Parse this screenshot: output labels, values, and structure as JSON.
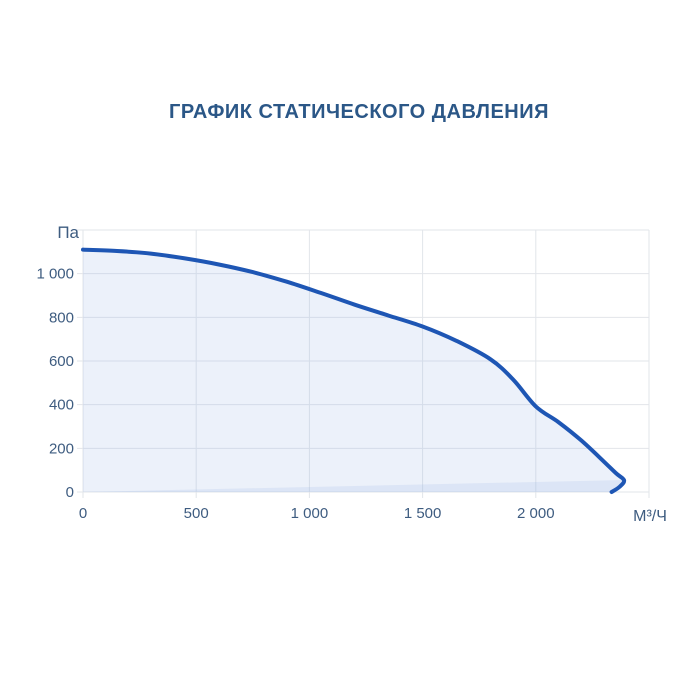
{
  "title": "ГРАФИК СТАТИЧЕСКОГО ДАВЛЕНИЯ",
  "chart_data": {
    "type": "area",
    "title": "ГРАФИК СТАТИЧЕСКОГО ДАВЛЕНИЯ",
    "xlabel": "М³/Ч",
    "ylabel": "Па",
    "xlim": [
      0,
      2500
    ],
    "ylim": [
      0,
      1200
    ],
    "grid": true,
    "legend": false,
    "x_ticks": {
      "values": [
        0,
        500,
        1000,
        1500,
        2000
      ],
      "labels": [
        "0",
        "500",
        "1 000",
        "1 500",
        "2 000"
      ]
    },
    "y_ticks": {
      "values": [
        0,
        200,
        400,
        600,
        800,
        1000
      ],
      "labels": [
        "0",
        "200",
        "400",
        "600",
        "800",
        "1 000"
      ]
    },
    "series": [
      {
        "name": "static_pressure_curve",
        "kind": "line_with_fill",
        "points": [
          [
            0,
            1110
          ],
          [
            150,
            1104
          ],
          [
            300,
            1092
          ],
          [
            450,
            1070
          ],
          [
            600,
            1042
          ],
          [
            750,
            1007
          ],
          [
            900,
            963
          ],
          [
            1050,
            912
          ],
          [
            1200,
            858
          ],
          [
            1350,
            808
          ],
          [
            1500,
            758
          ],
          [
            1650,
            692
          ],
          [
            1800,
            608
          ],
          [
            1900,
            515
          ],
          [
            2000,
            392
          ],
          [
            2100,
            320
          ],
          [
            2200,
            237
          ],
          [
            2300,
            140
          ],
          [
            2355,
            85
          ],
          [
            2390,
            53
          ],
          [
            2368,
            22
          ],
          [
            2335,
            0
          ]
        ]
      },
      {
        "name": "working_area_wedge",
        "kind": "fill_only",
        "points": [
          [
            0,
            0
          ],
          [
            2390,
            55
          ],
          [
            2345,
            0
          ]
        ]
      }
    ],
    "colors": {
      "title": "#2b5787",
      "tick_text": "#3e5c80",
      "grid": "#e2e5ea",
      "curve": "#1e56b4",
      "area_fill": "rgba(158,185,229,0.20)"
    }
  }
}
